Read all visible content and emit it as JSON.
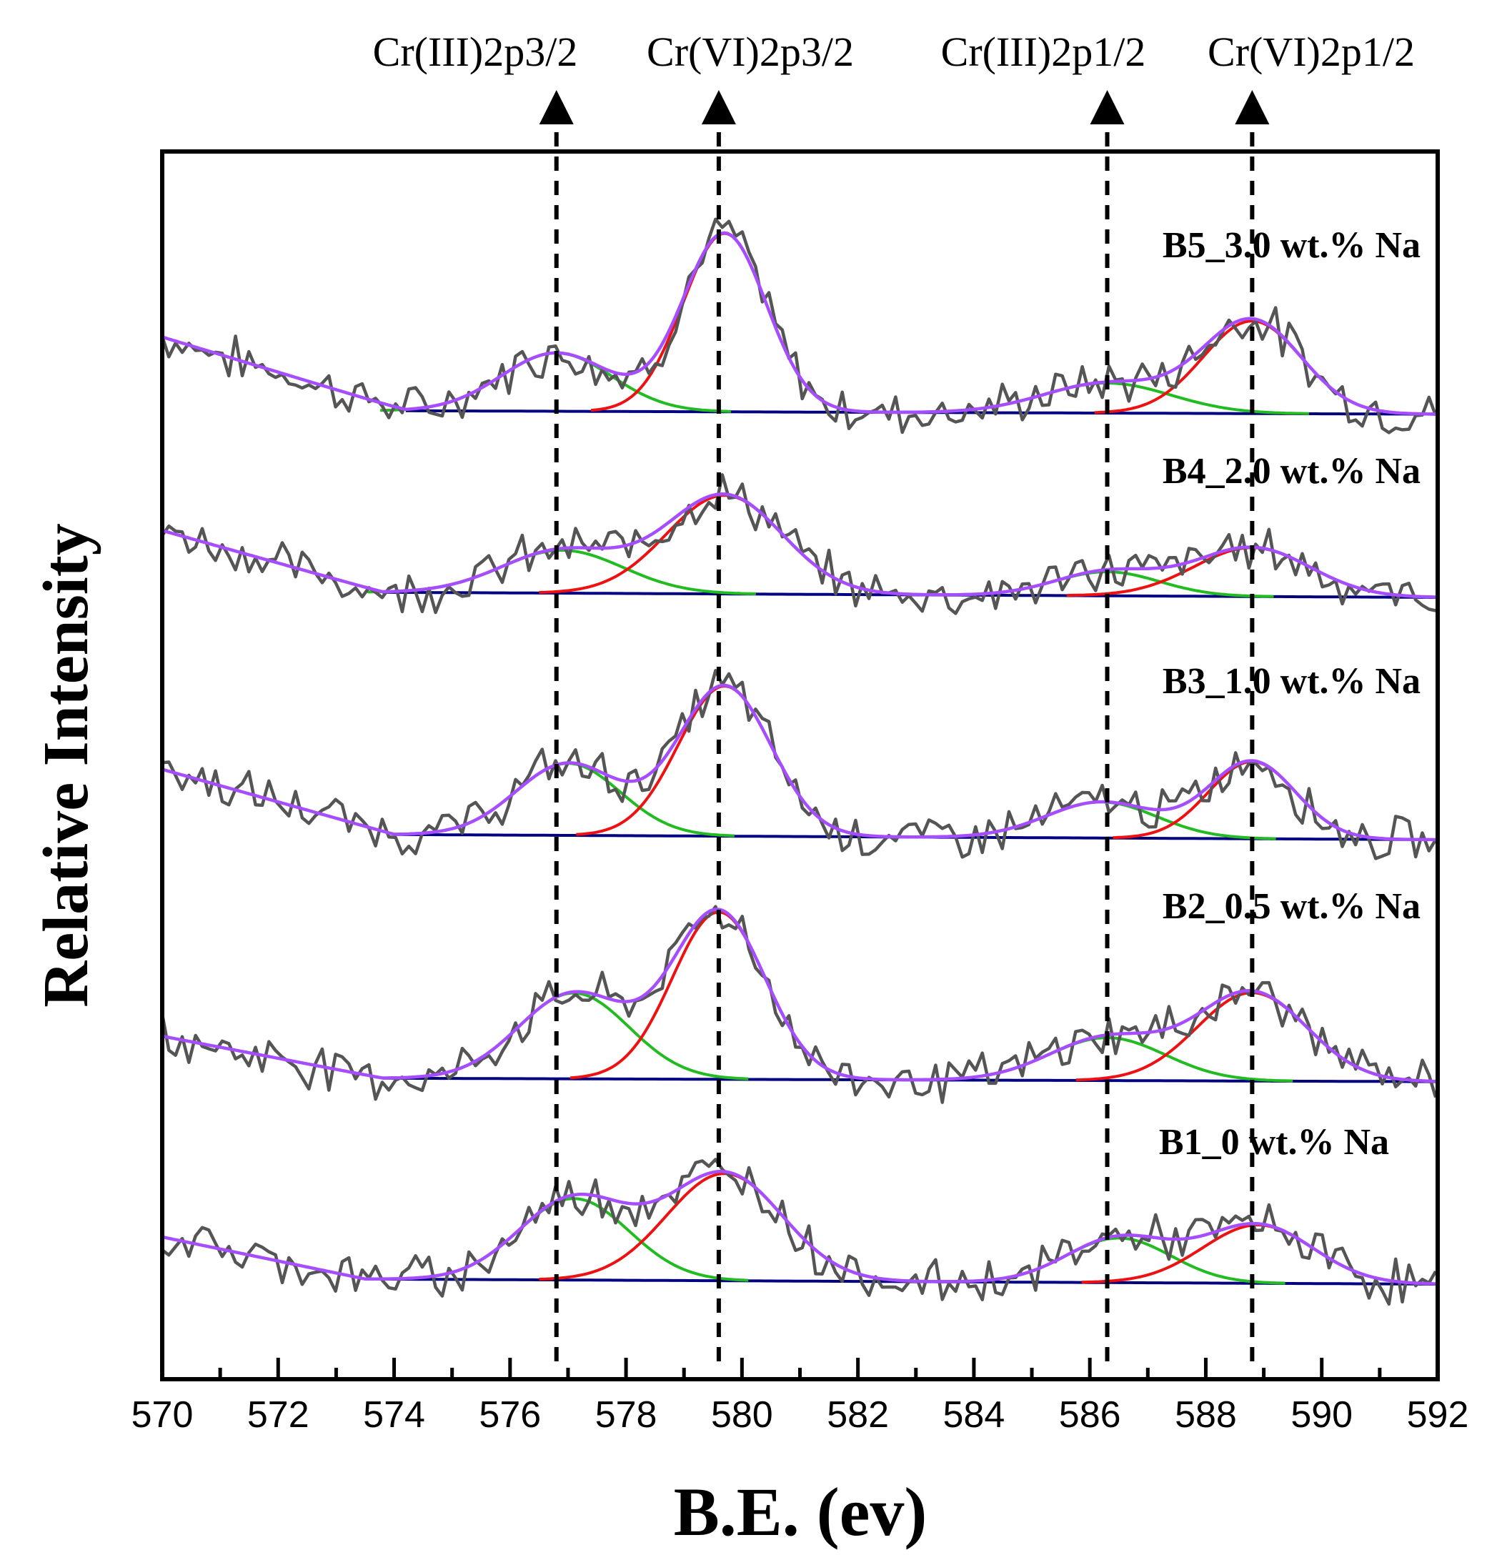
{
  "chart_data": {
    "type": "line",
    "title": "",
    "xlabel": "B.E. (ev)",
    "ylabel": "Relative Intensity",
    "xlim": [
      570,
      592
    ],
    "x_ticks": [
      570,
      572,
      574,
      576,
      578,
      580,
      582,
      584,
      586,
      588,
      590,
      592
    ],
    "y_ticks_shown": false,
    "grid": false,
    "peak_markers": [
      {
        "label": "Cr(III)2p3/2",
        "x": 576.8
      },
      {
        "label": "Cr(VI)2p3/2",
        "x": 579.6
      },
      {
        "label": "Cr(III)2p1/2",
        "x": 586.3
      },
      {
        "label": "Cr(VI)2p1/2",
        "x": 588.8
      }
    ],
    "component_colors": {
      "raw": "#555555",
      "envelope": "#a64dff",
      "cr_iii": "#22bb22",
      "cr_vi": "#ee1111",
      "background": "#000080",
      "marker": "#000000"
    },
    "spectra": [
      {
        "label": "B5_3.0 wt.% Na",
        "baseline_start": 0.92,
        "baseline_end": 0.02,
        "knee_x": 574.2,
        "cr_iii": [
          {
            "center": 576.8,
            "height": 0.68,
            "sigma": 0.95
          },
          {
            "center": 586.3,
            "height": 0.35,
            "sigma": 1.1
          }
        ],
        "cr_vi": [
          {
            "center": 579.7,
            "height": 2.08,
            "sigma": 0.72
          },
          {
            "center": 588.8,
            "height": 1.08,
            "sigma": 0.85
          }
        ]
      },
      {
        "label": "B4_2.0 wt.% Na",
        "baseline_start": 0.78,
        "baseline_end": 0.0,
        "knee_x": 573.8,
        "cr_iii": [
          {
            "center": 576.9,
            "height": 0.5,
            "sigma": 1.05
          },
          {
            "center": 586.3,
            "height": 0.28,
            "sigma": 0.9
          }
        ],
        "cr_vi": [
          {
            "center": 579.7,
            "height": 1.15,
            "sigma": 1.0
          },
          {
            "center": 588.8,
            "height": 0.57,
            "sigma": 1.0
          }
        ]
      },
      {
        "label": "B3_1.0 wt.% Na",
        "baseline_start": 0.82,
        "baseline_end": 0.0,
        "knee_x": 574.0,
        "cr_iii": [
          {
            "center": 577.0,
            "height": 0.84,
            "sigma": 0.9
          },
          {
            "center": 586.2,
            "height": 0.42,
            "sigma": 0.95
          }
        ],
        "cr_vi": [
          {
            "center": 579.7,
            "height": 1.75,
            "sigma": 0.8
          },
          {
            "center": 588.8,
            "height": 0.9,
            "sigma": 0.75
          }
        ]
      },
      {
        "label": "B2_0.5 wt.% Na",
        "baseline_start": 0.55,
        "baseline_end": 0.02,
        "knee_x": 573.8,
        "cr_iii": [
          {
            "center": 577.1,
            "height": 1.0,
            "sigma": 0.95
          },
          {
            "center": 586.3,
            "height": 0.5,
            "sigma": 1.0
          }
        ],
        "cr_vi": [
          {
            "center": 579.6,
            "height": 1.95,
            "sigma": 0.8
          },
          {
            "center": 588.8,
            "height": 1.03,
            "sigma": 0.95
          }
        ]
      },
      {
        "label": "B1_0 wt.% Na",
        "baseline_start": 0.55,
        "baseline_end": 0.0,
        "knee_x": 573.5,
        "cr_iii": [
          {
            "center": 577.1,
            "height": 0.95,
            "sigma": 0.95
          },
          {
            "center": 586.5,
            "height": 0.52,
            "sigma": 0.9
          }
        ],
        "cr_vi": [
          {
            "center": 579.7,
            "height": 1.25,
            "sigma": 1.0
          },
          {
            "center": 588.9,
            "height": 0.68,
            "sigma": 0.95
          }
        ]
      }
    ]
  }
}
